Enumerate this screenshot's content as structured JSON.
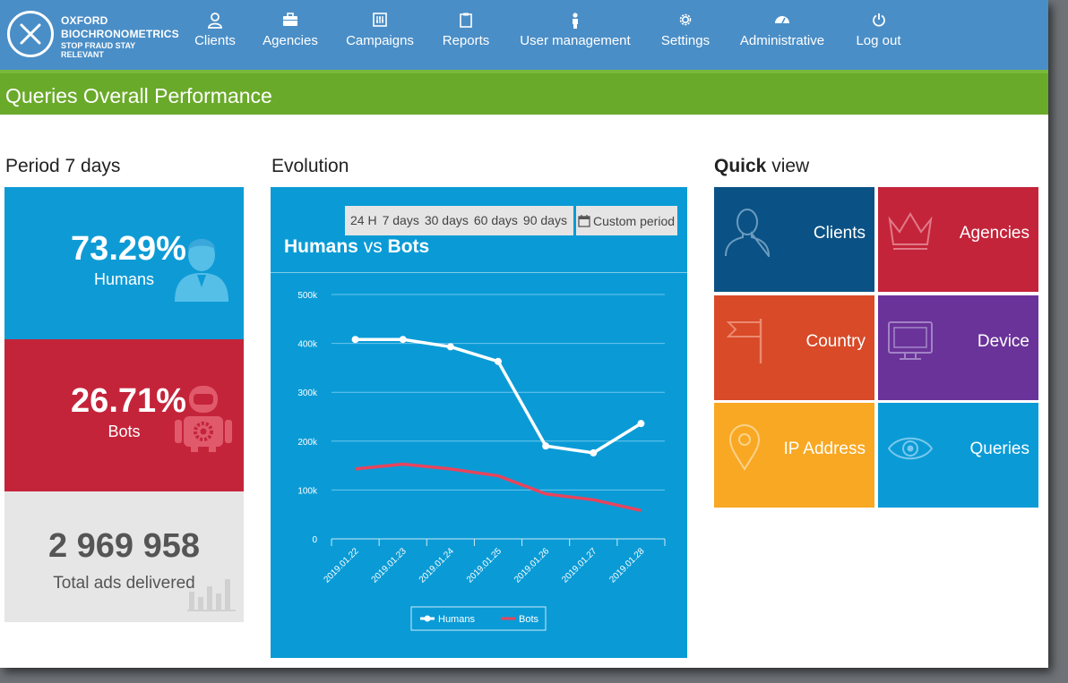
{
  "logo": {
    "line1": "OXFORD",
    "line2": "BIOCHRONOMETRICS",
    "line3": "STOP FRAUD  STAY RELEVANT"
  },
  "nav": [
    {
      "label": "Clients",
      "icon": "user-icon"
    },
    {
      "label": "Agencies",
      "icon": "briefcase-icon"
    },
    {
      "label": "Campaigns",
      "icon": "sliders-icon"
    },
    {
      "label": "Reports",
      "icon": "clipboard-icon"
    },
    {
      "label": "User management",
      "icon": "person-icon"
    },
    {
      "label": "Settings",
      "icon": "gear-icon"
    },
    {
      "label": "Administrative",
      "icon": "dashboard-icon"
    },
    {
      "label": "Log out",
      "icon": "power-icon"
    }
  ],
  "page_title": "Queries Overall Performance",
  "period": {
    "title": "Period 7 days",
    "humans_pct": "73.29%",
    "humans_label": "Humans",
    "bots_pct": "26.71%",
    "bots_label": "Bots",
    "total": "2 969 958",
    "total_label": "Total ads delivered"
  },
  "evolution": {
    "title": "Evolution",
    "ranges": [
      "24 H",
      "7 days",
      "30 days",
      "60 days",
      "90 days"
    ],
    "custom_label": "Custom period",
    "chart_title_a": "Humans",
    "chart_title_vs": " vs ",
    "chart_title_b": "Bots"
  },
  "chart_data": {
    "type": "line",
    "title": "Humans vs Bots",
    "x": [
      "2019.01.22",
      "2019.01.23",
      "2019.01.24",
      "2019.01.25",
      "2019.01.26",
      "2019.01.27",
      "2019.01.28"
    ],
    "ylim": [
      0,
      500000
    ],
    "yticks": [
      "0",
      "100k",
      "200k",
      "300k",
      "400k",
      "500k"
    ],
    "ytick_values": [
      0,
      100000,
      200000,
      300000,
      400000,
      500000
    ],
    "series": [
      {
        "name": "Humans",
        "color": "#ffffff",
        "values": [
          408000,
          408000,
          393000,
          363000,
          190000,
          176000,
          236000
        ]
      },
      {
        "name": "Bots",
        "color": "#e8445c",
        "values": [
          143000,
          153000,
          143000,
          129000,
          92000,
          80000,
          58000
        ]
      }
    ],
    "legend": "bottom-center"
  },
  "quickview": {
    "title_bold": "Quick",
    "title_rest": " view",
    "tiles": [
      {
        "label": "Clients",
        "icon": "user-outline-icon",
        "color": "#0a5285"
      },
      {
        "label": "Agencies",
        "icon": "crown-icon",
        "color": "#c4243a"
      },
      {
        "label": "Country",
        "icon": "flag-icon",
        "color": "#d84a28"
      },
      {
        "label": "Device",
        "icon": "monitor-icon",
        "color": "#6a3399"
      },
      {
        "label": "IP Address",
        "icon": "map-pin-icon",
        "color": "#f8a823"
      },
      {
        "label": "Queries",
        "icon": "eye-icon",
        "color": "#0a9bd6"
      }
    ]
  }
}
